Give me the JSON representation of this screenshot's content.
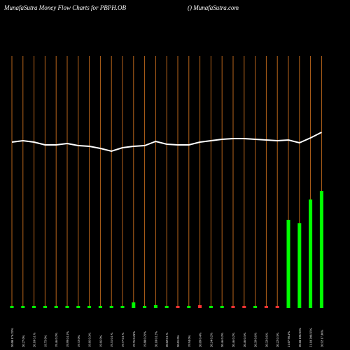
{
  "chart_data": {
    "type": "bar-line",
    "title": "MunafaSutra  Money Flow  Charts for PBPH.OB",
    "subtitle": "() MunafaSutra.com",
    "categories": [
      "20.08 176.22%",
      "20.27 0%",
      "20.10 6.1%",
      "19.75 0%",
      "19.46 0.2%",
      "19.99 0.13%",
      "19.72 0%",
      "19.66 0.3%",
      "19.66 0%",
      "19.51 0.1%",
      "19.77 0.1%",
      "19.76 0.24%",
      "19.88 0.23%",
      "20.10 0.12%",
      "20.02 0.1%",
      "20.01 0%",
      "19.94 0%",
      "20.09 0.4%",
      "20.24 0.2%",
      "20.46 0.2%",
      "20.46 0.2%",
      "20.46 0.5%",
      "20.39 0.6%",
      "20.32 0.6%",
      "20.22 0.3%",
      "21.07 98.4%",
      "20.68 100.36%",
      "21.10 200.56%",
      "20.92 17.06%"
    ],
    "bar_values": [
      3,
      3,
      3,
      3,
      3,
      3,
      3,
      3,
      3,
      3,
      3,
      8,
      3,
      4,
      3,
      3,
      3,
      4,
      3,
      3,
      3,
      3,
      3,
      3,
      3,
      126,
      121,
      155,
      167
    ],
    "bar_colors": [
      "#00ff00",
      "#00ff00",
      "#00ff00",
      "#00ff00",
      "#00ff00",
      "#00ff00",
      "#00ff00",
      "#00ff00",
      "#00ff00",
      "#00ff00",
      "#00ff00",
      "#00ff00",
      "#00ff00",
      "#00ff00",
      "#00ff00",
      "#ff3333",
      "#00ff00",
      "#ff3333",
      "#00ff00",
      "#00ff00",
      "#ff3333",
      "#ff3333",
      "#00ff00",
      "#ff3333",
      "#ff3333",
      "#00ff00",
      "#00ff00",
      "#00ff00",
      "#00ff00"
    ],
    "line_values": [
      237,
      239,
      237,
      233,
      233,
      235,
      232,
      231,
      228,
      224,
      229,
      231,
      232,
      238,
      234,
      233,
      233,
      237,
      239,
      241,
      242,
      242,
      241,
      240,
      239,
      240,
      236,
      243,
      251
    ],
    "line_color": "#ffffff",
    "grid_color": "#b8651b"
  }
}
